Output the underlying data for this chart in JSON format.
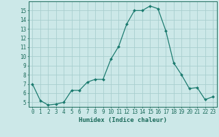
{
  "x": [
    0,
    1,
    2,
    3,
    4,
    5,
    6,
    7,
    8,
    9,
    10,
    11,
    12,
    13,
    14,
    15,
    16,
    17,
    18,
    19,
    20,
    21,
    22,
    23
  ],
  "y": [
    7.0,
    5.2,
    4.7,
    4.8,
    5.0,
    6.3,
    6.3,
    7.2,
    7.5,
    7.5,
    9.7,
    11.1,
    13.5,
    15.0,
    15.0,
    15.5,
    15.2,
    12.8,
    9.3,
    8.0,
    6.5,
    6.6,
    5.3,
    5.6
  ],
  "line_color": "#1a7a6e",
  "marker": "D",
  "marker_size": 2,
  "bg_color": "#cce8e8",
  "grid_color": "#a8cece",
  "xlabel": "Humidex (Indice chaleur)",
  "xlim": [
    -0.5,
    23.5
  ],
  "ylim": [
    4.5,
    16.0
  ],
  "yticks": [
    5,
    6,
    7,
    8,
    9,
    10,
    11,
    12,
    13,
    14,
    15
  ],
  "xticks": [
    0,
    1,
    2,
    3,
    4,
    5,
    6,
    7,
    8,
    9,
    10,
    11,
    12,
    13,
    14,
    15,
    16,
    17,
    18,
    19,
    20,
    21,
    22,
    23
  ],
  "tick_color": "#1a6a5a",
  "tick_fontsize": 5.5,
  "xlabel_fontsize": 6.5,
  "axis_color": "#1a6a5a",
  "linewidth": 0.9
}
